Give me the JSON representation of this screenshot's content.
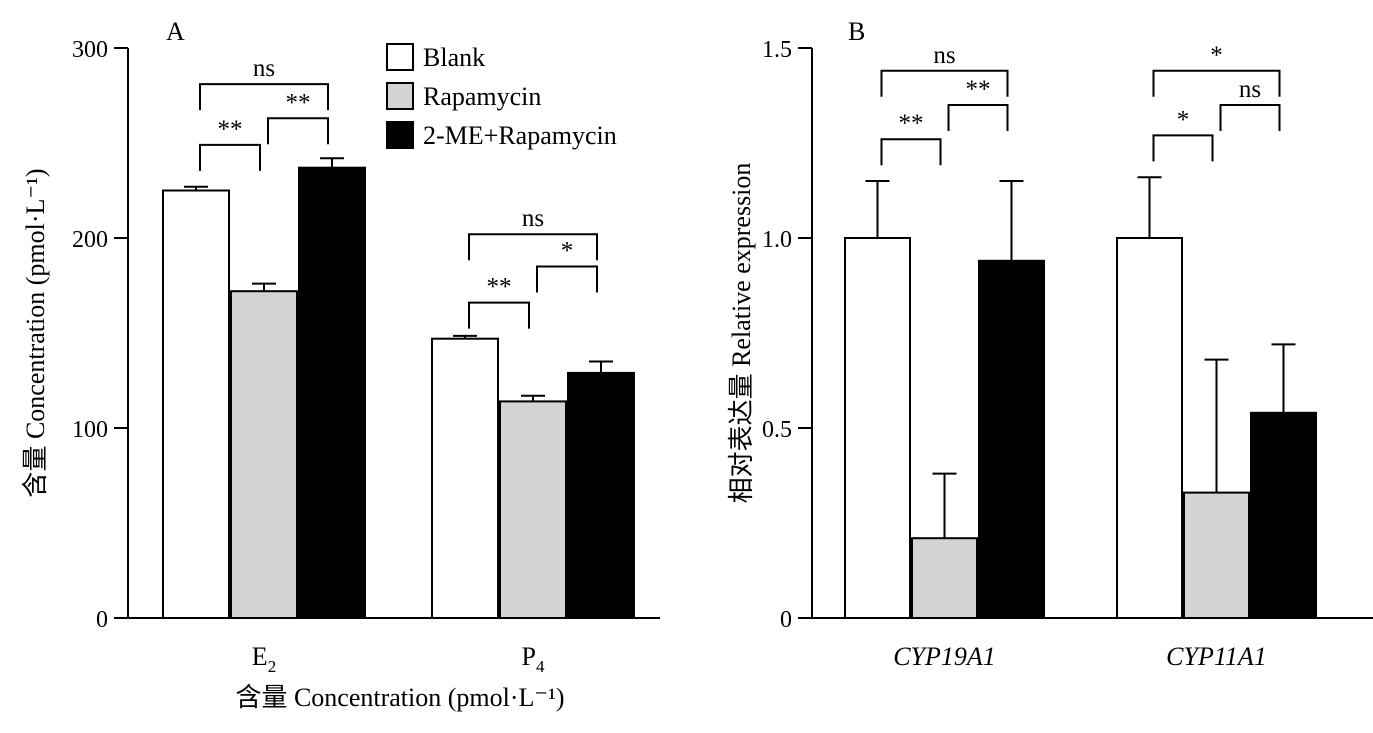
{
  "legend": {
    "entries": [
      {
        "name": "Blank",
        "color": "#ffffff"
      },
      {
        "name": "Rapamycin",
        "color": "#d3d3d3"
      },
      {
        "name": "2-ME+Rapamycin",
        "color": "#000000"
      }
    ]
  },
  "chart_data": [
    {
      "type": "bar",
      "panel_label": "A",
      "title": "",
      "ylabel": "含量 Concentration (pmol·L⁻¹)",
      "xlabel": "含量 Concentration (pmol·L⁻¹)",
      "categories": [
        {
          "base": "E",
          "sub": "2"
        },
        {
          "base": "P",
          "sub": "4"
        }
      ],
      "ylim": [
        0,
        300
      ],
      "yticks": [
        0,
        100,
        200,
        300
      ],
      "series": [
        {
          "name": "Blank",
          "color": "#ffffff",
          "values": [
            225,
            147
          ],
          "errors": [
            2,
            1.5
          ]
        },
        {
          "name": "Rapamycin",
          "color": "#d3d3d3",
          "values": [
            172,
            114
          ],
          "errors": [
            4,
            3
          ]
        },
        {
          "name": "2-ME+Rapamycin",
          "color": "#000000",
          "values": [
            237,
            129
          ],
          "errors": [
            5,
            6
          ]
        }
      ],
      "significance": [
        {
          "category": 0,
          "from": 0,
          "to": 1,
          "label": "**",
          "level": 249
        },
        {
          "category": 0,
          "from": 1,
          "to": 2,
          "label": "**",
          "level": 263
        },
        {
          "category": 0,
          "from": 0,
          "to": 2,
          "label": "ns",
          "level": 281
        },
        {
          "category": 1,
          "from": 0,
          "to": 1,
          "label": "**",
          "level": 166
        },
        {
          "category": 1,
          "from": 1,
          "to": 2,
          "label": "*",
          "level": 185
        },
        {
          "category": 1,
          "from": 0,
          "to": 2,
          "label": "ns",
          "level": 202
        }
      ]
    },
    {
      "type": "bar",
      "panel_label": "B",
      "title": "",
      "ylabel": "相对表达量 Relative expression",
      "xlabel": "",
      "categories": [
        {
          "base": "CYP19A1",
          "italic": true
        },
        {
          "base": "CYP11A1",
          "italic": true
        }
      ],
      "ylim": [
        0,
        1.5
      ],
      "yticks": [
        0,
        0.5,
        1.0,
        1.5
      ],
      "ytick_labels": [
        "0",
        "0.5",
        "1.0",
        "1.5"
      ],
      "series": [
        {
          "name": "Blank",
          "color": "#ffffff",
          "values": [
            1.0,
            1.0
          ],
          "errors": [
            0.15,
            0.16
          ]
        },
        {
          "name": "Rapamycin",
          "color": "#d3d3d3",
          "values": [
            0.21,
            0.33
          ],
          "errors": [
            0.17,
            0.35
          ]
        },
        {
          "name": "2-ME+Rapamycin",
          "color": "#000000",
          "values": [
            0.94,
            0.54
          ],
          "errors": [
            0.21,
            0.18
          ]
        }
      ],
      "significance": [
        {
          "category": 0,
          "from": 0,
          "to": 1,
          "label": "**",
          "level": 1.26
        },
        {
          "category": 0,
          "from": 1,
          "to": 2,
          "label": "**",
          "level": 1.35
        },
        {
          "category": 0,
          "from": 0,
          "to": 2,
          "label": "ns",
          "level": 1.44
        },
        {
          "category": 1,
          "from": 0,
          "to": 1,
          "label": "*",
          "level": 1.27
        },
        {
          "category": 1,
          "from": 1,
          "to": 2,
          "label": "ns",
          "level": 1.35
        },
        {
          "category": 1,
          "from": 0,
          "to": 2,
          "label": "*",
          "level": 1.44
        }
      ]
    }
  ]
}
